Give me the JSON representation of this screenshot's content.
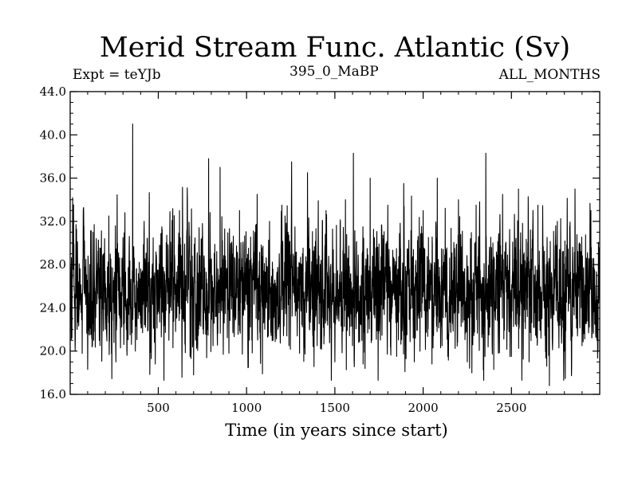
{
  "header": {
    "title": "Merid Stream Func. Atlantic (Sv)",
    "experiment": "Expt = teYJb",
    "run_id": "395_0_MaBP",
    "period": "ALL_MONTHS"
  },
  "chart_data": {
    "type": "line",
    "title": "Merid Stream Func. Atlantic (Sv)",
    "xlabel": "Time (in years since start)",
    "ylabel": "",
    "xlim": [
      1,
      3000
    ],
    "ylim": [
      16.0,
      44.0
    ],
    "x_ticks": [
      500,
      1000,
      1500,
      2000,
      2500
    ],
    "y_ticks": [
      16.0,
      20.0,
      24.0,
      28.0,
      32.0,
      36.0,
      40.0,
      44.0
    ],
    "y_tick_labels": [
      "16.0",
      "20.0",
      "24.0",
      "28.0",
      "32.0",
      "36.0",
      "40.0",
      "44.0"
    ],
    "grid": false,
    "n_points": 3000,
    "mean": 25.8,
    "std": 2.8,
    "series": [
      {
        "color": "#000000",
        "points": [
          [
            1,
            26.5
          ],
          [
            15,
            34.2
          ],
          [
            40,
            22.0
          ],
          [
            75,
            33.0
          ],
          [
            100,
            18.3
          ],
          [
            130,
            31.0
          ],
          [
            170,
            20.5
          ],
          [
            220,
            32.5
          ],
          [
            260,
            19.0
          ],
          [
            300,
            30.5
          ],
          [
            340,
            21.5
          ],
          [
            355,
            41.0
          ],
          [
            370,
            20.0
          ],
          [
            420,
            32.0
          ],
          [
            460,
            19.3
          ],
          [
            520,
            31.5
          ],
          [
            560,
            21.0
          ],
          [
            620,
            33.0
          ],
          [
            680,
            19.5
          ],
          [
            700,
            17.8
          ],
          [
            750,
            31.8
          ],
          [
            785,
            37.8
          ],
          [
            810,
            20.5
          ],
          [
            850,
            37.0
          ],
          [
            900,
            19.8
          ],
          [
            960,
            33.0
          ],
          [
            1010,
            18.5
          ],
          [
            1060,
            34.5
          ],
          [
            1090,
            17.9
          ],
          [
            1130,
            32.0
          ],
          [
            1150,
            21.0
          ],
          [
            1200,
            33.5
          ],
          [
            1240,
            20.5
          ],
          [
            1255,
            37.5
          ],
          [
            1300,
            19.8
          ],
          [
            1345,
            36.5
          ],
          [
            1400,
            20.5
          ],
          [
            1450,
            33.0
          ],
          [
            1500,
            19.0
          ],
          [
            1560,
            34.0
          ],
          [
            1600,
            20.5
          ],
          [
            1605,
            38.3
          ],
          [
            1660,
            18.8
          ],
          [
            1700,
            36.0
          ],
          [
            1745,
            17.3
          ],
          [
            1800,
            33.5
          ],
          [
            1850,
            19.5
          ],
          [
            1890,
            35.5
          ],
          [
            1950,
            19.0
          ],
          [
            2000,
            33.0
          ],
          [
            2050,
            18.8
          ],
          [
            2080,
            36.0
          ],
          [
            2140,
            19.5
          ],
          [
            2200,
            34.0
          ],
          [
            2250,
            19.0
          ],
          [
            2300,
            33.5
          ],
          [
            2350,
            19.5
          ],
          [
            2355,
            38.3
          ],
          [
            2400,
            18.3
          ],
          [
            2450,
            34.5
          ],
          [
            2500,
            19.5
          ],
          [
            2540,
            35.0
          ],
          [
            2600,
            19.0
          ],
          [
            2650,
            33.5
          ],
          [
            2700,
            18.6
          ],
          [
            2715,
            16.8
          ],
          [
            2760,
            32.0
          ],
          [
            2800,
            20.0
          ],
          [
            2860,
            35.0
          ],
          [
            2900,
            20.5
          ],
          [
            2950,
            33.0
          ],
          [
            3000,
            25.0
          ]
        ]
      }
    ]
  }
}
